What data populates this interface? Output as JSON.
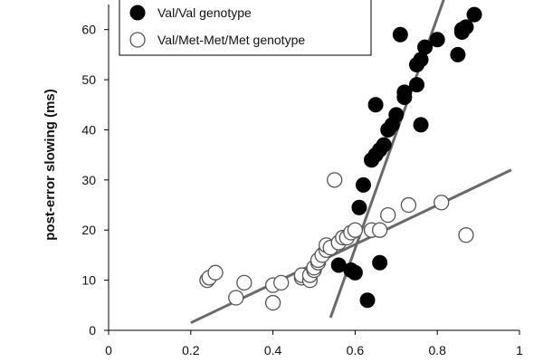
{
  "chart_data": {
    "type": "scatter",
    "ylabel": "post-error slowing (ms)",
    "xlabel": "",
    "title": "",
    "xlim": [
      0,
      1
    ],
    "ylim": [
      0,
      65
    ],
    "x_ticks": [
      "0",
      "0.2",
      "0.4",
      "0.6",
      "0.8",
      "1"
    ],
    "y_ticks": [
      "0",
      "10",
      "20",
      "30",
      "40",
      "50",
      "60"
    ],
    "grid": false,
    "legend_position": "top-left",
    "series": [
      {
        "name": "Val/Val genotype",
        "marker": "filled-circle",
        "color": "#000000",
        "points": [
          [
            0.56,
            13
          ],
          [
            0.59,
            12
          ],
          [
            0.6,
            11.5
          ],
          [
            0.63,
            6
          ],
          [
            0.66,
            13.5
          ],
          [
            0.61,
            24.5
          ],
          [
            0.62,
            29
          ],
          [
            0.64,
            34
          ],
          [
            0.65,
            35
          ],
          [
            0.66,
            36
          ],
          [
            0.67,
            37
          ],
          [
            0.65,
            45
          ],
          [
            0.68,
            40
          ],
          [
            0.69,
            41
          ],
          [
            0.7,
            43
          ],
          [
            0.72,
            47.5
          ],
          [
            0.72,
            46.5
          ],
          [
            0.76,
            41
          ],
          [
            0.75,
            49
          ],
          [
            0.75,
            53
          ],
          [
            0.77,
            56.5
          ],
          [
            0.8,
            58
          ],
          [
            0.71,
            59
          ],
          [
            0.85,
            55
          ],
          [
            0.86,
            60
          ],
          [
            0.86,
            59.5
          ],
          [
            0.87,
            60.5
          ],
          [
            0.89,
            63
          ],
          [
            0.76,
            54
          ]
        ],
        "trend": [
          [
            0.54,
            2.5
          ],
          [
            0.82,
            67
          ]
        ]
      },
      {
        "name": "Val/Met-Met/Met genotype",
        "marker": "open-circle",
        "color": "#000000",
        "points": [
          [
            0.24,
            10
          ],
          [
            0.245,
            10.5
          ],
          [
            0.26,
            11.5
          ],
          [
            0.31,
            6.5
          ],
          [
            0.33,
            9.5
          ],
          [
            0.4,
            5.5
          ],
          [
            0.4,
            9
          ],
          [
            0.42,
            9.5
          ],
          [
            0.47,
            10.5
          ],
          [
            0.47,
            11
          ],
          [
            0.49,
            10
          ],
          [
            0.49,
            11
          ],
          [
            0.5,
            12
          ],
          [
            0.5,
            12.5
          ],
          [
            0.51,
            13.5
          ],
          [
            0.51,
            14
          ],
          [
            0.52,
            15
          ],
          [
            0.53,
            16
          ],
          [
            0.53,
            17
          ],
          [
            0.54,
            16.5
          ],
          [
            0.56,
            17.5
          ],
          [
            0.57,
            18.5
          ],
          [
            0.58,
            18.5
          ],
          [
            0.59,
            19.5
          ],
          [
            0.6,
            20
          ],
          [
            0.64,
            20
          ],
          [
            0.66,
            20
          ],
          [
            0.68,
            23
          ],
          [
            0.73,
            25
          ],
          [
            0.81,
            25.5
          ],
          [
            0.87,
            19
          ],
          [
            0.55,
            30
          ]
        ],
        "trend": [
          [
            0.2,
            1.5
          ],
          [
            0.98,
            32
          ]
        ]
      }
    ]
  }
}
